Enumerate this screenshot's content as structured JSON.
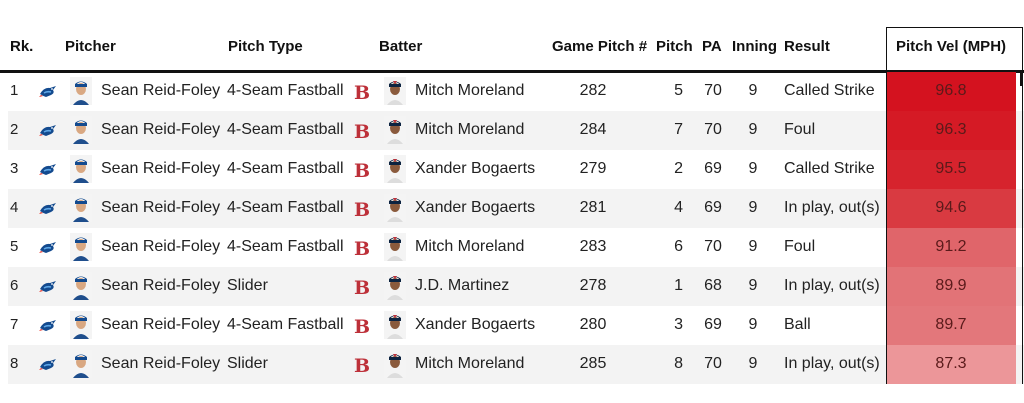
{
  "columns": {
    "rk": "Rk.",
    "pitcher": "Pitcher",
    "pitch_type": "Pitch Type",
    "batter": "Batter",
    "game_pitch": "Game Pitch #",
    "pitch": "Pitch",
    "pa": "PA",
    "inning": "Inning",
    "result": "Result",
    "pitch_vel": "Pitch Vel (MPH)"
  },
  "rows": [
    {
      "rk": "1",
      "pitcher": "Sean Reid-Foley",
      "pitch_type": "4-Seam Fastball",
      "batter": "Mitch Moreland",
      "game_pitch": "282",
      "pitch": "5",
      "pa": "70",
      "inning": "9",
      "result": "Called Strike",
      "vel": "96.8",
      "vel_color": "#d4121f"
    },
    {
      "rk": "2",
      "pitcher": "Sean Reid-Foley",
      "pitch_type": "4-Seam Fastball",
      "batter": "Mitch Moreland",
      "game_pitch": "284",
      "pitch": "7",
      "pa": "70",
      "inning": "9",
      "result": "Foul",
      "vel": "96.3",
      "vel_color": "#d51a25"
    },
    {
      "rk": "3",
      "pitcher": "Sean Reid-Foley",
      "pitch_type": "4-Seam Fastball",
      "batter": "Xander Bogaerts",
      "game_pitch": "279",
      "pitch": "2",
      "pa": "69",
      "inning": "9",
      "result": "Called Strike",
      "vel": "95.5",
      "vel_color": "#d6232d"
    },
    {
      "rk": "4",
      "pitcher": "Sean Reid-Foley",
      "pitch_type": "4-Seam Fastball",
      "batter": "Xander Bogaerts",
      "game_pitch": "281",
      "pitch": "4",
      "pa": "69",
      "inning": "9",
      "result": "In play, out(s)",
      "vel": "94.6",
      "vel_color": "#d93a41"
    },
    {
      "rk": "5",
      "pitcher": "Sean Reid-Foley",
      "pitch_type": "4-Seam Fastball",
      "batter": "Mitch Moreland",
      "game_pitch": "283",
      "pitch": "6",
      "pa": "70",
      "inning": "9",
      "result": "Foul",
      "vel": "91.2",
      "vel_color": "#e0656a"
    },
    {
      "rk": "6",
      "pitcher": "Sean Reid-Foley",
      "pitch_type": "Slider",
      "batter": "J.D. Martinez",
      "game_pitch": "278",
      "pitch": "1",
      "pa": "68",
      "inning": "9",
      "result": "In play, out(s)",
      "vel": "89.9",
      "vel_color": "#e27377"
    },
    {
      "rk": "7",
      "pitcher": "Sean Reid-Foley",
      "pitch_type": "4-Seam Fastball",
      "batter": "Xander Bogaerts",
      "game_pitch": "280",
      "pitch": "3",
      "pa": "69",
      "inning": "9",
      "result": "Ball",
      "vel": "89.7",
      "vel_color": "#e3777b"
    },
    {
      "rk": "8",
      "pitcher": "Sean Reid-Foley",
      "pitch_type": "Slider",
      "batter": "Mitch Moreland",
      "game_pitch": "285",
      "pitch": "8",
      "pa": "70",
      "inning": "9",
      "result": "In play, out(s)",
      "vel": "87.3",
      "vel_color": "#ec9699"
    }
  ],
  "icons": {
    "pitcher_team": "blue-jays-logo-icon",
    "batter_team": "red-sox-logo-icon",
    "headshot": "player-headshot-icon"
  },
  "colors": {
    "blue_jays": "#134a8e",
    "red_sox": "#bd3039"
  }
}
